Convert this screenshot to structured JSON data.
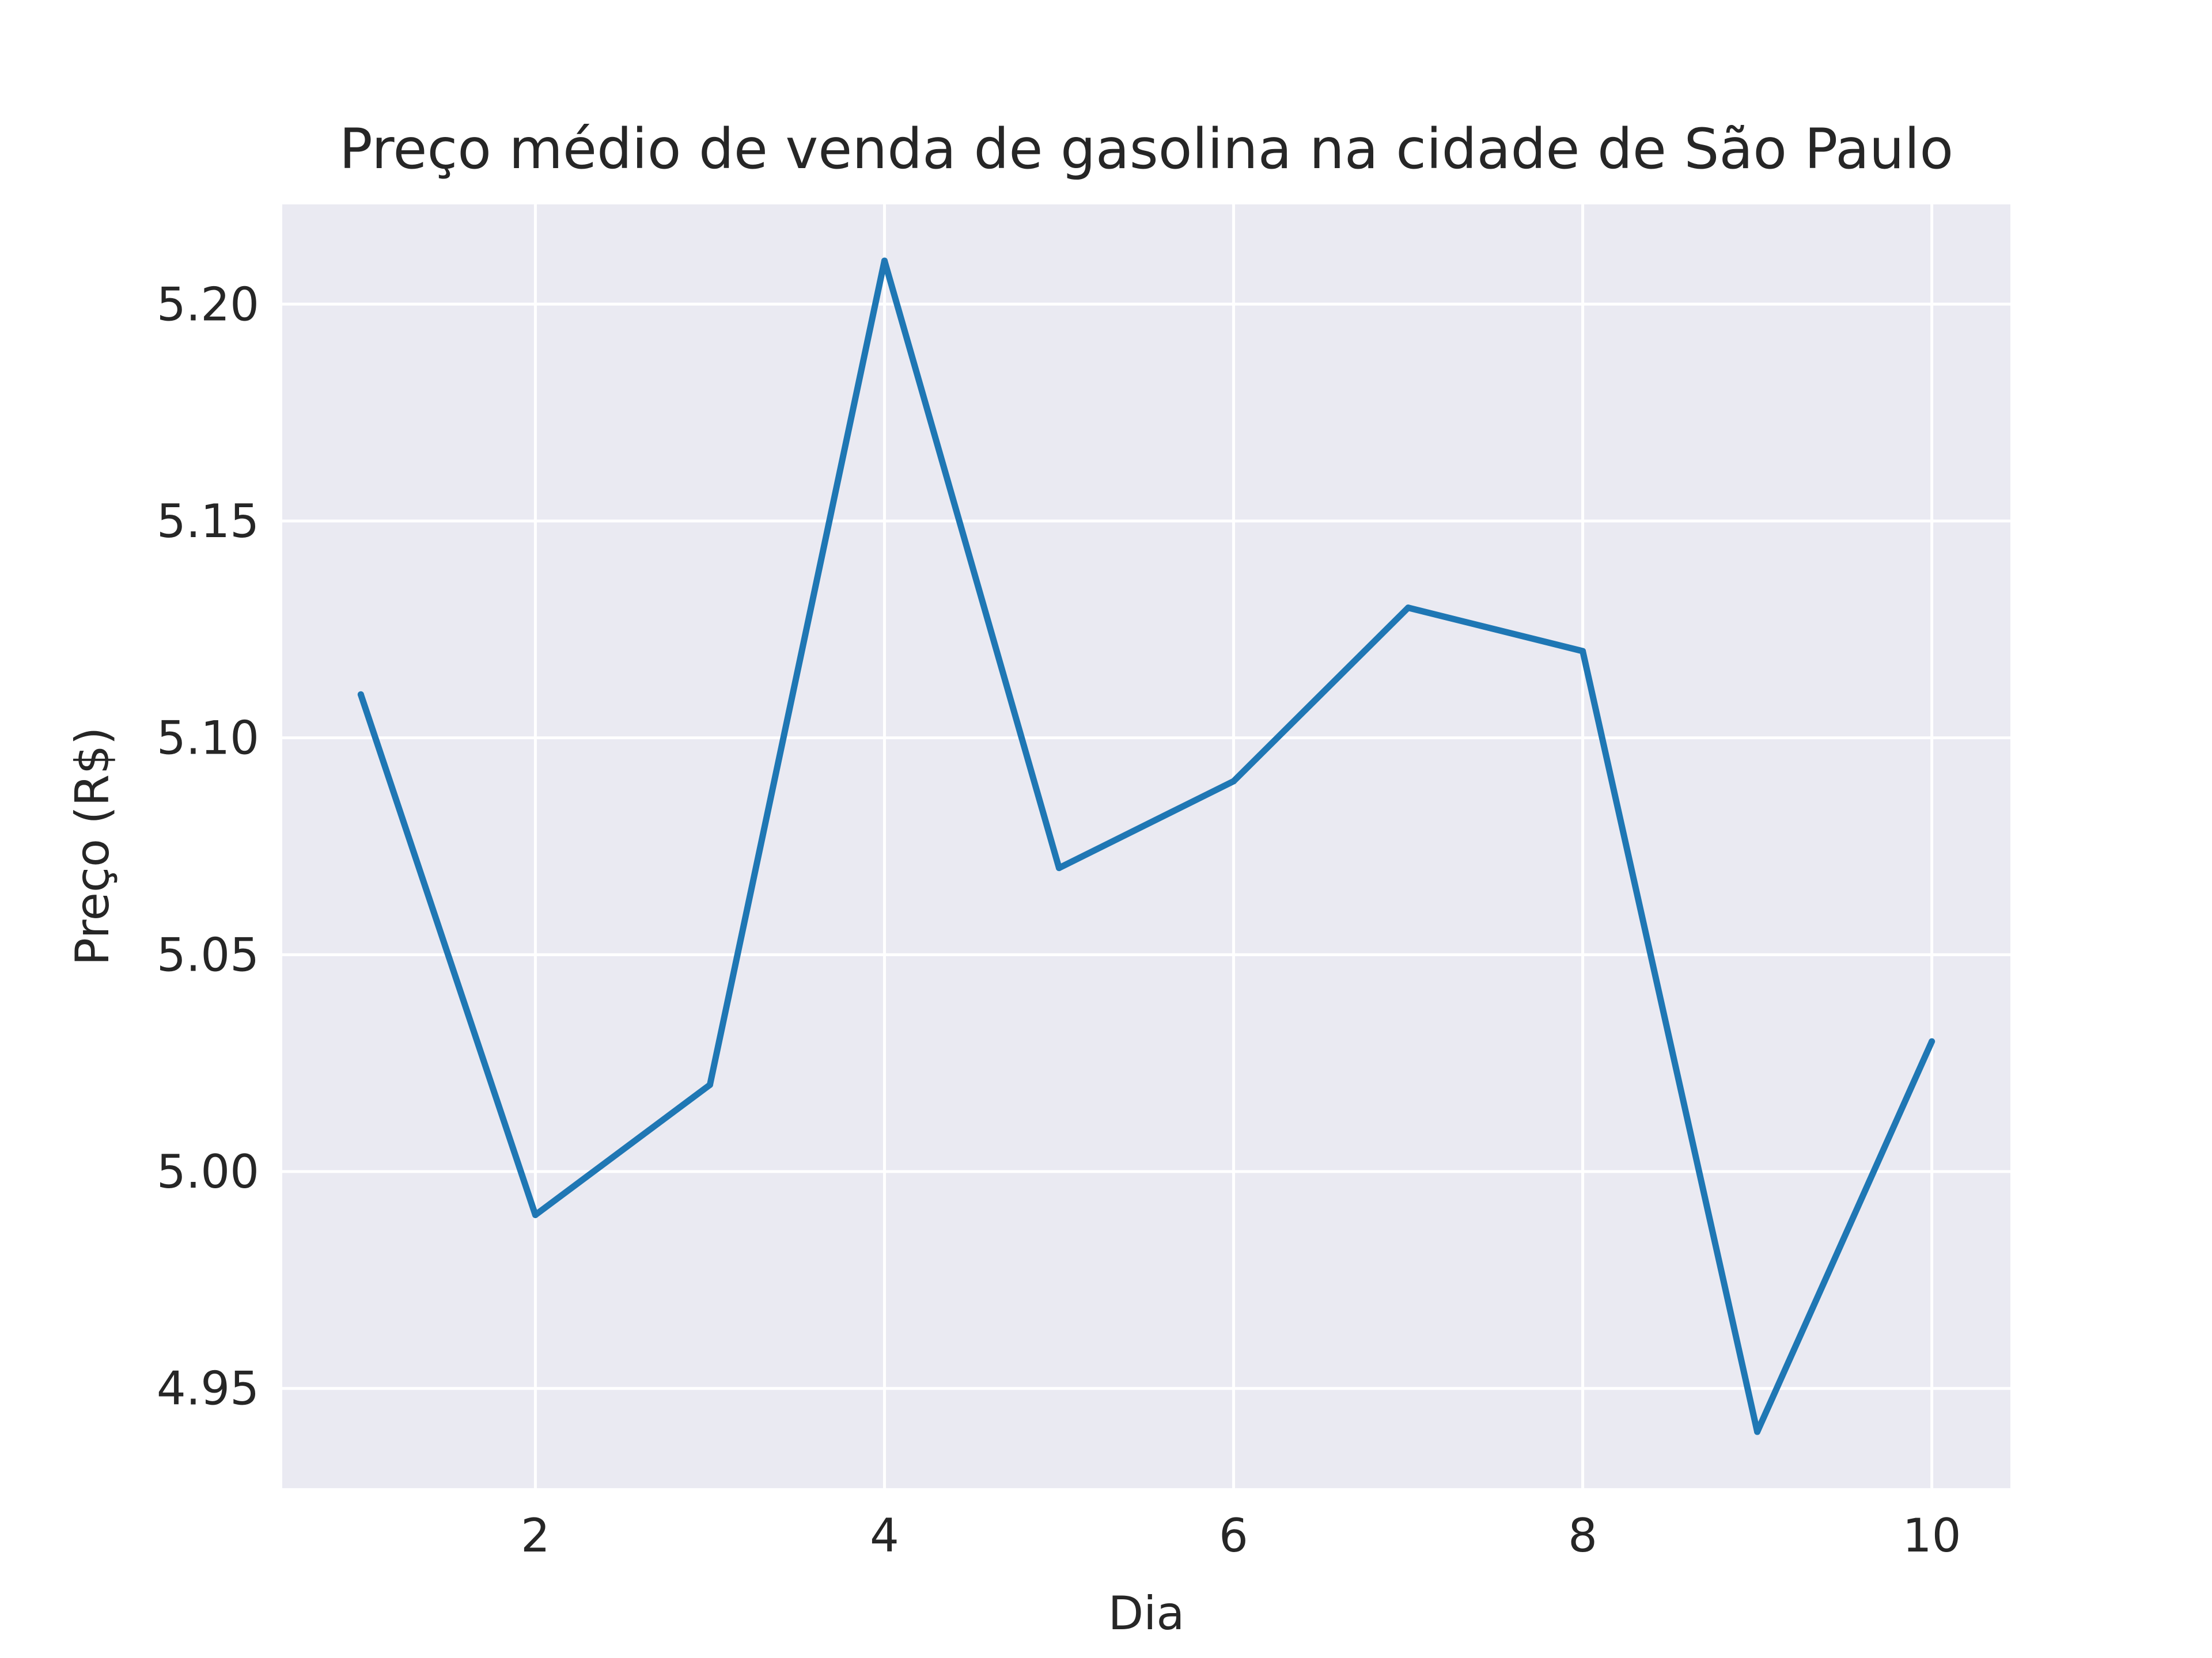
{
  "chart_data": {
    "type": "line",
    "title": "Preço médio de venda de gasolina na cidade de São Paulo",
    "xlabel": "Dia",
    "ylabel": "Preço (R$)",
    "x": [
      1,
      2,
      3,
      4,
      5,
      6,
      7,
      8,
      9,
      10
    ],
    "series": [
      {
        "values": [
          5.11,
          4.99,
          5.02,
          5.21,
          5.07,
          5.09,
          5.13,
          5.12,
          4.94,
          5.03
        ]
      }
    ],
    "xlim": [
      0.55,
      10.45
    ],
    "ylim": [
      4.927,
      5.223
    ],
    "xticks": [
      "2",
      "4",
      "6",
      "8",
      "10"
    ],
    "yticks": [
      "4.95",
      "5.00",
      "5.05",
      "5.10",
      "5.15",
      "5.20"
    ],
    "grid": true,
    "colors": {
      "line": "#1f77b4",
      "plot_background": "#eaeaf2",
      "grid": "#ffffff",
      "text": "#262626"
    }
  }
}
